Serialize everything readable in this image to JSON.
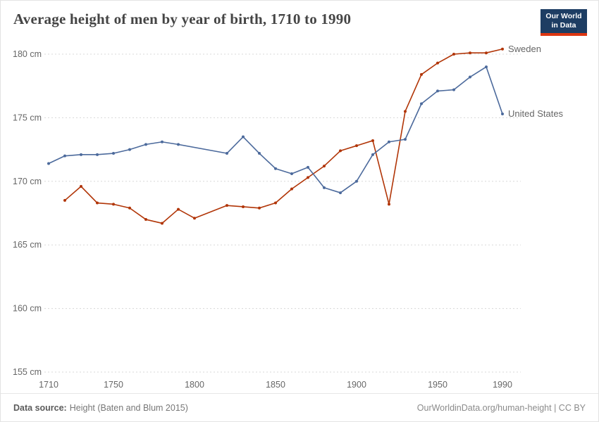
{
  "header": {
    "title": "Average height of men by year of birth, 1710 to 1990",
    "logo": {
      "line1": "Our World",
      "line2": "in Data",
      "bg_color": "#1d3d63",
      "accent_color": "#dc3511"
    }
  },
  "chart_data": {
    "type": "line",
    "title": "Average height of men by year of birth, 1710 to 1990",
    "xlabel": "",
    "ylabel": "",
    "xlim": [
      1710,
      1990
    ],
    "ylim": [
      155,
      180
    ],
    "x_ticks": [
      1710,
      1750,
      1800,
      1850,
      1900,
      1950,
      1990
    ],
    "y_ticks": [
      155,
      160,
      165,
      170,
      175,
      180
    ],
    "y_tick_suffix": " cm",
    "grid": "horizontal-dashed",
    "legend_position": "end-of-line-labels",
    "series": [
      {
        "name": "Sweden",
        "color": "#b13507",
        "x": [
          1720,
          1730,
          1740,
          1750,
          1760,
          1770,
          1780,
          1790,
          1800,
          1820,
          1830,
          1840,
          1850,
          1860,
          1870,
          1880,
          1890,
          1900,
          1910,
          1920,
          1930,
          1940,
          1950,
          1960,
          1970,
          1980,
          1990
        ],
        "y": [
          168.5,
          169.6,
          168.3,
          168.2,
          167.9,
          167.0,
          166.7,
          167.8,
          167.1,
          168.1,
          168.0,
          167.9,
          168.3,
          169.4,
          170.3,
          171.2,
          172.4,
          172.8,
          173.2,
          168.2,
          175.5,
          178.4,
          179.3,
          180.0,
          180.1,
          180.1,
          180.4
        ]
      },
      {
        "name": "United States",
        "color": "#4c6a9c",
        "x": [
          1710,
          1720,
          1730,
          1740,
          1750,
          1760,
          1770,
          1780,
          1790,
          1820,
          1830,
          1840,
          1850,
          1860,
          1870,
          1880,
          1890,
          1900,
          1910,
          1920,
          1930,
          1940,
          1950,
          1960,
          1970,
          1980,
          1990
        ],
        "y": [
          171.4,
          172.0,
          172.1,
          172.1,
          172.2,
          172.5,
          172.9,
          173.1,
          172.9,
          172.2,
          173.5,
          172.2,
          171.0,
          170.6,
          171.1,
          169.5,
          169.1,
          170.0,
          172.1,
          173.1,
          173.3,
          176.1,
          177.1,
          177.2,
          178.2,
          179.0,
          175.3
        ]
      }
    ]
  },
  "footer": {
    "source_label": "Data source:",
    "source_text": "Height (Baten and Blum 2015)",
    "credit": "OurWorldinData.org/human-height | CC BY"
  }
}
